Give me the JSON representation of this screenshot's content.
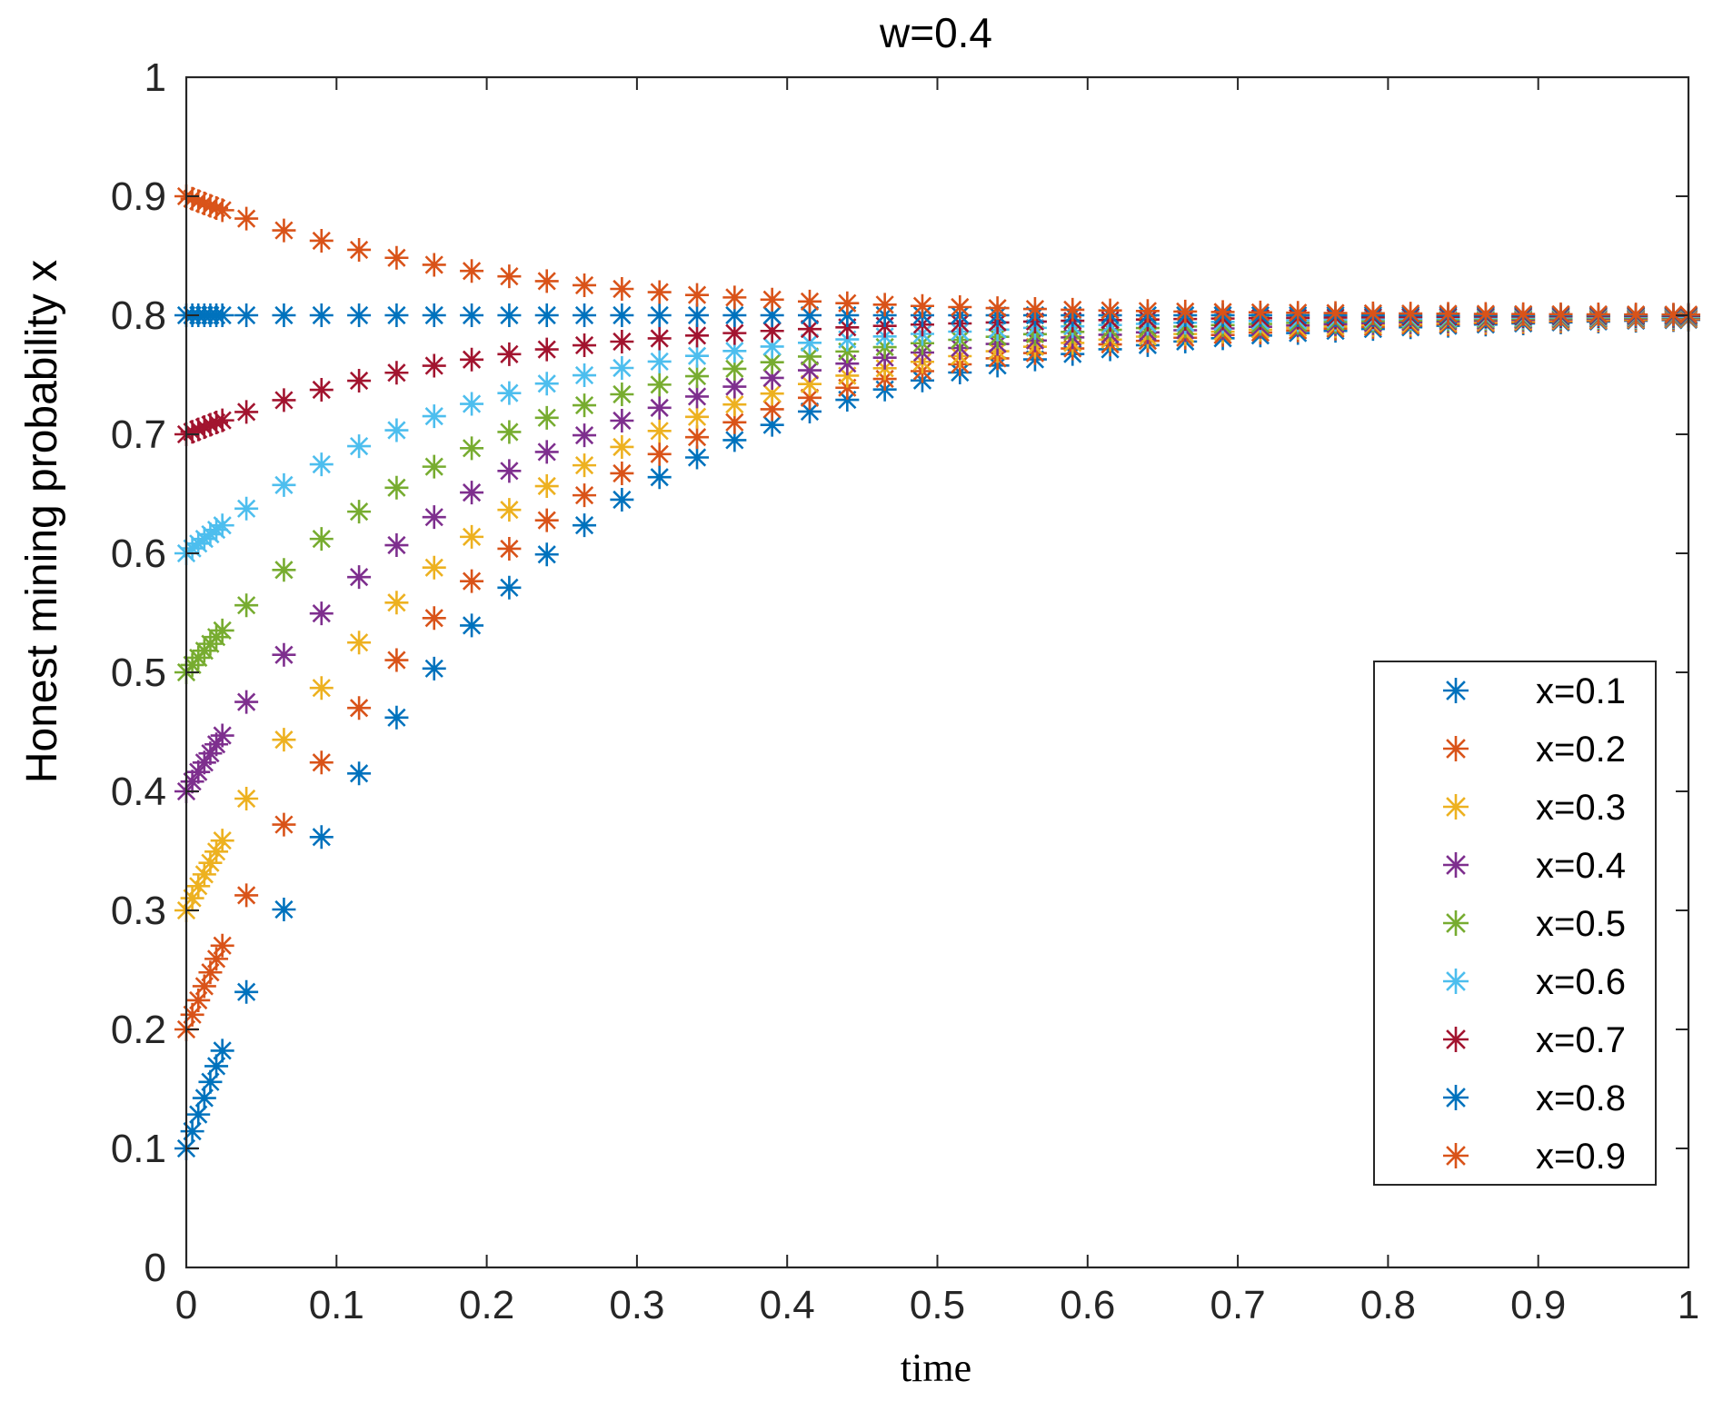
{
  "chart_data": {
    "type": "scatter",
    "title": "w=0.4",
    "xlabel": "time",
    "ylabel": "Honest mining probability x",
    "xlim": [
      0,
      1
    ],
    "ylim": [
      0,
      1
    ],
    "xticks": [
      0,
      0.1,
      0.2,
      0.3,
      0.4,
      0.5,
      0.6,
      0.7,
      0.8,
      0.9,
      1
    ],
    "yticks": [
      0,
      0.1,
      0.2,
      0.3,
      0.4,
      0.5,
      0.6,
      0.7,
      0.8,
      0.9,
      1
    ],
    "xtick_labels": [
      "0",
      "0.1",
      "0.2",
      "0.3",
      "0.4",
      "0.5",
      "0.6",
      "0.7",
      "0.8",
      "0.9",
      "1"
    ],
    "ytick_labels": [
      "0",
      "0.1",
      "0.2",
      "0.3",
      "0.4",
      "0.5",
      "0.6",
      "0.7",
      "0.8",
      "0.9",
      "1"
    ],
    "marker": "asterisk",
    "equilibrium": 0.8,
    "rate": 5.2,
    "legend_position": "lower-right",
    "series": [
      {
        "name": "x=0.1",
        "x0": 0.1,
        "color": "#0072BD"
      },
      {
        "name": "x=0.2",
        "x0": 0.2,
        "color": "#D95319"
      },
      {
        "name": "x=0.3",
        "x0": 0.3,
        "color": "#EDB120"
      },
      {
        "name": "x=0.4",
        "x0": 0.4,
        "color": "#7E2F8E"
      },
      {
        "name": "x=0.5",
        "x0": 0.5,
        "color": "#77AC30"
      },
      {
        "name": "x=0.6",
        "x0": 0.6,
        "color": "#4DBEEE"
      },
      {
        "name": "x=0.7",
        "x0": 0.7,
        "color": "#A2142F"
      },
      {
        "name": "x=0.8",
        "x0": 0.8,
        "color": "#0072BD"
      },
      {
        "name": "x=0.9",
        "x0": 0.9,
        "color": "#D95319"
      }
    ]
  }
}
